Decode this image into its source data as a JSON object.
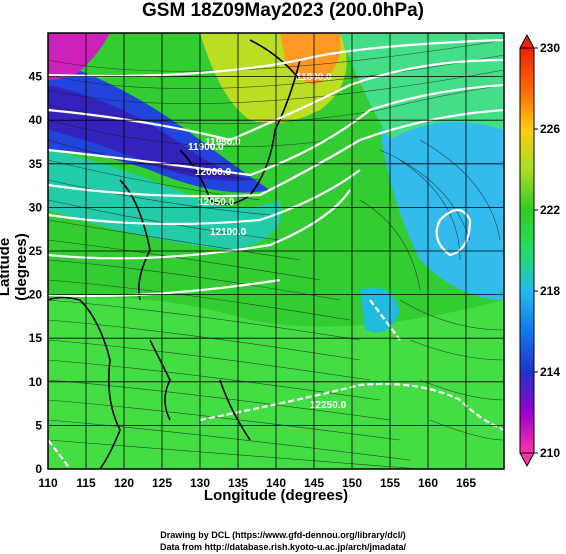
{
  "title": "GSM 18Z09May2023 (200.0hPa)",
  "x_axis": {
    "label": "Longitude (degrees)",
    "ticks": [
      "110",
      "115",
      "120",
      "125",
      "130",
      "135",
      "140",
      "145",
      "150",
      "155",
      "160",
      "165"
    ],
    "range": [
      110,
      170
    ]
  },
  "y_axis": {
    "label": "Latitude  (degrees)",
    "ticks": [
      "0",
      "5",
      "10",
      "15",
      "20",
      "25",
      "30",
      "35",
      "40",
      "45"
    ],
    "range": [
      0,
      50
    ]
  },
  "colorbar": {
    "ticks": [
      "210",
      "214",
      "218",
      "222",
      "226",
      "230"
    ],
    "range": [
      210,
      230
    ],
    "colors": [
      "#ff33aa",
      "#9900cc",
      "#2233cc",
      "#1177ee",
      "#22bbee",
      "#22dd66",
      "#33cc22",
      "#aadd22",
      "#ffcc11",
      "#ff6600",
      "#ee2200"
    ]
  },
  "contour_labels": [
    "11900.0",
    "11950.0",
    "12000.0",
    "12050.0",
    "12100.0",
    "12250.0",
    "11800.0"
  ],
  "credits": {
    "line1": "Drawing by DCL (https://www.gfd-dennou.org/library/dcl/)",
    "line2": "Data from http://database.rish.kyoto-u.ac.jp/arch/jmadata/"
  }
}
